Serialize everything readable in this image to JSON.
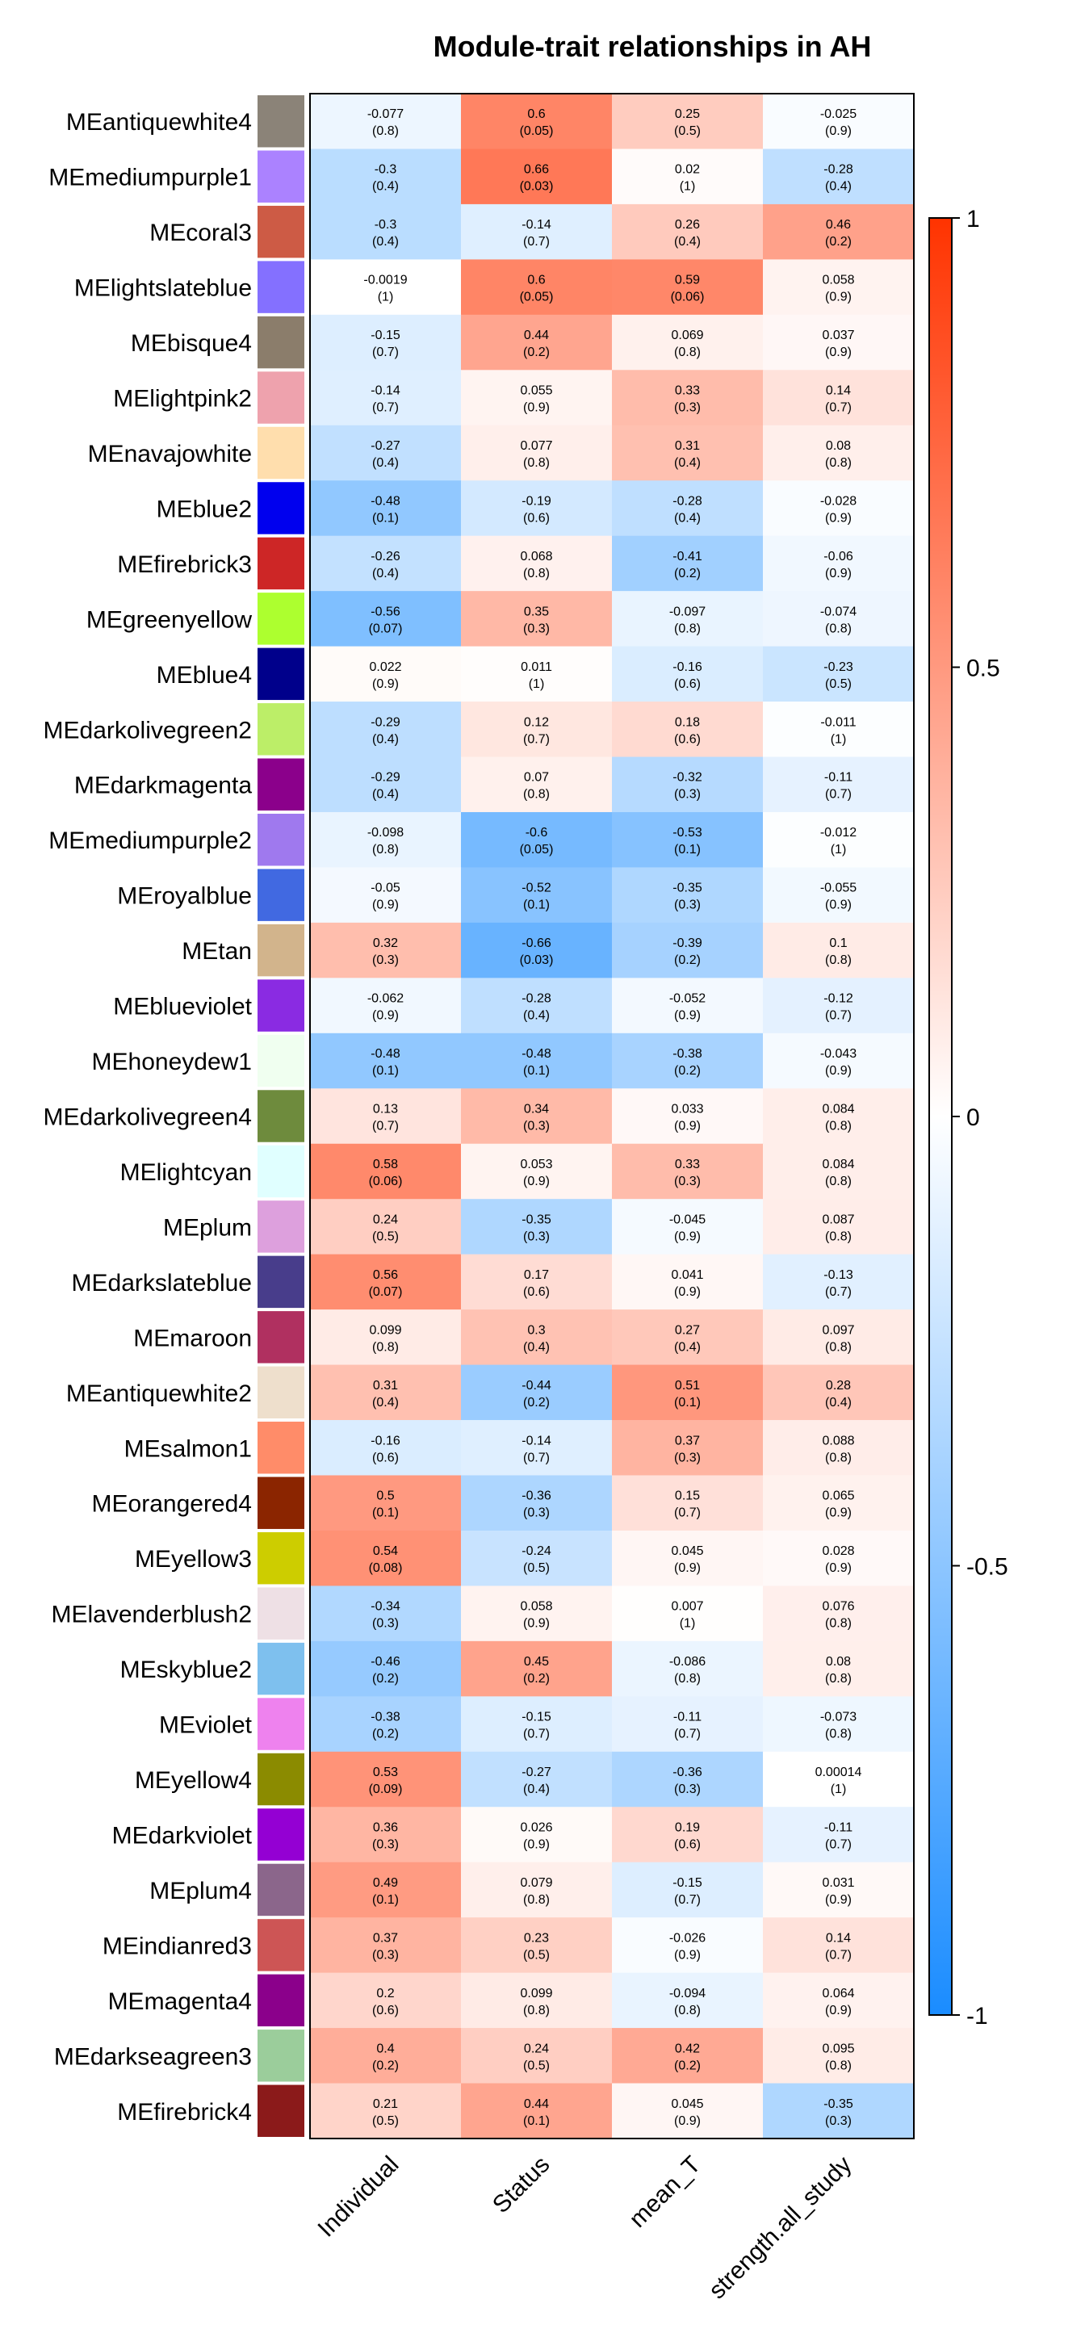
{
  "chart_data": {
    "type": "heatmap",
    "title": "Module-trait relationships in AH",
    "xlabel": "",
    "ylabel": "",
    "columns": [
      "Individual",
      "Status",
      "mean_T",
      "strength.all_study"
    ],
    "colorbar": {
      "range": [
        -1,
        1
      ],
      "ticks": [
        "1",
        "0.5",
        "0",
        "-0.5",
        "-1"
      ],
      "low_color": "#1A8CFF",
      "mid_color": "#FFFFFF",
      "high_color": "#FF3300",
      "placement": "right"
    },
    "rows": [
      {
        "name": "MEantiquewhite4",
        "color": "#8B8378",
        "values": [
          -0.077,
          0.6,
          0.25,
          -0.025
        ],
        "r": [
          "-0.077",
          "0.6",
          "0.25",
          "-0.025"
        ],
        "p": [
          "(0.8)",
          "(0.05)",
          "(0.5)",
          "(0.9)"
        ]
      },
      {
        "name": "MEmediumpurple1",
        "color": "#AB82FF",
        "values": [
          -0.3,
          0.66,
          0.02,
          -0.28
        ],
        "r": [
          "-0.3",
          "0.66",
          "0.02",
          "-0.28"
        ],
        "p": [
          "(0.4)",
          "(0.03)",
          "(1)",
          "(0.4)"
        ]
      },
      {
        "name": "MEcoral3",
        "color": "#CD5B45",
        "values": [
          -0.3,
          -0.14,
          0.26,
          0.46
        ],
        "r": [
          "-0.3",
          "-0.14",
          "0.26",
          "0.46"
        ],
        "p": [
          "(0.4)",
          "(0.7)",
          "(0.4)",
          "(0.2)"
        ]
      },
      {
        "name": "MElightslateblue",
        "color": "#8470FF",
        "values": [
          -0.0019,
          0.6,
          0.59,
          0.058
        ],
        "r": [
          "-0.0019",
          "0.6",
          "0.59",
          "0.058"
        ],
        "p": [
          "(1)",
          "(0.05)",
          "(0.06)",
          "(0.9)"
        ]
      },
      {
        "name": "MEbisque4",
        "color": "#8B7D6B",
        "values": [
          -0.15,
          0.44,
          0.069,
          0.037
        ],
        "r": [
          "-0.15",
          "0.44",
          "0.069",
          "0.037"
        ],
        "p": [
          "(0.7)",
          "(0.2)",
          "(0.8)",
          "(0.9)"
        ]
      },
      {
        "name": "MElightpink2",
        "color": "#EEA2AD",
        "values": [
          -0.14,
          0.055,
          0.33,
          0.14
        ],
        "r": [
          "-0.14",
          "0.055",
          "0.33",
          "0.14"
        ],
        "p": [
          "(0.7)",
          "(0.9)",
          "(0.3)",
          "(0.7)"
        ]
      },
      {
        "name": "MEnavajowhite",
        "color": "#FFDEAD",
        "values": [
          -0.27,
          0.077,
          0.31,
          0.08
        ],
        "r": [
          "-0.27",
          "0.077",
          "0.31",
          "0.08"
        ],
        "p": [
          "(0.4)",
          "(0.8)",
          "(0.4)",
          "(0.8)"
        ]
      },
      {
        "name": "MEblue2",
        "color": "#0000EE",
        "values": [
          -0.48,
          -0.19,
          -0.28,
          -0.028
        ],
        "r": [
          "-0.48",
          "-0.19",
          "-0.28",
          "-0.028"
        ],
        "p": [
          "(0.1)",
          "(0.6)",
          "(0.4)",
          "(0.9)"
        ]
      },
      {
        "name": "MEfirebrick3",
        "color": "#CD2626",
        "values": [
          -0.26,
          0.068,
          -0.41,
          -0.06
        ],
        "r": [
          "-0.26",
          "0.068",
          "-0.41",
          "-0.06"
        ],
        "p": [
          "(0.4)",
          "(0.8)",
          "(0.2)",
          "(0.9)"
        ]
      },
      {
        "name": "MEgreenyellow",
        "color": "#ADFF2F",
        "values": [
          -0.56,
          0.35,
          -0.097,
          -0.074
        ],
        "r": [
          "-0.56",
          "0.35",
          "-0.097",
          "-0.074"
        ],
        "p": [
          "(0.07)",
          "(0.3)",
          "(0.8)",
          "(0.8)"
        ]
      },
      {
        "name": "MEblue4",
        "color": "#00008B",
        "values": [
          0.022,
          0.011,
          -0.16,
          -0.23
        ],
        "r": [
          "0.022",
          "0.011",
          "-0.16",
          "-0.23"
        ],
        "p": [
          "(0.9)",
          "(1)",
          "(0.6)",
          "(0.5)"
        ]
      },
      {
        "name": "MEdarkolivegreen2",
        "color": "#BCEE68",
        "values": [
          -0.29,
          0.12,
          0.18,
          -0.011
        ],
        "r": [
          "-0.29",
          "0.12",
          "0.18",
          "-0.011"
        ],
        "p": [
          "(0.4)",
          "(0.7)",
          "(0.6)",
          "(1)"
        ]
      },
      {
        "name": "MEdarkmagenta",
        "color": "#8B008B",
        "values": [
          -0.29,
          0.07,
          -0.32,
          -0.11
        ],
        "r": [
          "-0.29",
          "0.07",
          "-0.32",
          "-0.11"
        ],
        "p": [
          "(0.4)",
          "(0.8)",
          "(0.3)",
          "(0.7)"
        ]
      },
      {
        "name": "MEmediumpurple2",
        "color": "#9F79EE",
        "values": [
          -0.098,
          -0.6,
          -0.53,
          -0.012
        ],
        "r": [
          "-0.098",
          "-0.6",
          "-0.53",
          "-0.012"
        ],
        "p": [
          "(0.8)",
          "(0.05)",
          "(0.1)",
          "(1)"
        ]
      },
      {
        "name": "MEroyalblue",
        "color": "#4169E1",
        "values": [
          -0.05,
          -0.52,
          -0.35,
          -0.055
        ],
        "r": [
          "-0.05",
          "-0.52",
          "-0.35",
          "-0.055"
        ],
        "p": [
          "(0.9)",
          "(0.1)",
          "(0.3)",
          "(0.9)"
        ]
      },
      {
        "name": "MEtan",
        "color": "#D2B48C",
        "values": [
          0.32,
          -0.66,
          -0.39,
          0.1
        ],
        "r": [
          "0.32",
          "-0.66",
          "-0.39",
          "0.1"
        ],
        "p": [
          "(0.3)",
          "(0.03)",
          "(0.2)",
          "(0.8)"
        ]
      },
      {
        "name": "MEblueviolet",
        "color": "#8A2BE2",
        "values": [
          -0.062,
          -0.28,
          -0.052,
          -0.12
        ],
        "r": [
          "-0.062",
          "-0.28",
          "-0.052",
          "-0.12"
        ],
        "p": [
          "(0.9)",
          "(0.4)",
          "(0.9)",
          "(0.7)"
        ]
      },
      {
        "name": "MEhoneydew1",
        "color": "#F0FFF0",
        "values": [
          -0.48,
          -0.48,
          -0.38,
          -0.043
        ],
        "r": [
          "-0.48",
          "-0.48",
          "-0.38",
          "-0.043"
        ],
        "p": [
          "(0.1)",
          "(0.1)",
          "(0.2)",
          "(0.9)"
        ]
      },
      {
        "name": "MEdarkolivegreen4",
        "color": "#6E8B3D",
        "values": [
          0.13,
          0.34,
          0.033,
          0.084
        ],
        "r": [
          "0.13",
          "0.34",
          "0.033",
          "0.084"
        ],
        "p": [
          "(0.7)",
          "(0.3)",
          "(0.9)",
          "(0.8)"
        ]
      },
      {
        "name": "MElightcyan",
        "color": "#E0FFFF",
        "values": [
          0.58,
          0.053,
          0.33,
          0.084
        ],
        "r": [
          "0.58",
          "0.053",
          "0.33",
          "0.084"
        ],
        "p": [
          "(0.06)",
          "(0.9)",
          "(0.3)",
          "(0.8)"
        ]
      },
      {
        "name": "MEplum",
        "color": "#DDA0DD",
        "values": [
          0.24,
          -0.35,
          -0.045,
          0.087
        ],
        "r": [
          "0.24",
          "-0.35",
          "-0.045",
          "0.087"
        ],
        "p": [
          "(0.5)",
          "(0.3)",
          "(0.9)",
          "(0.8)"
        ]
      },
      {
        "name": "MEdarkslateblue",
        "color": "#483D8B",
        "values": [
          0.56,
          0.17,
          0.041,
          -0.13
        ],
        "r": [
          "0.56",
          "0.17",
          "0.041",
          "-0.13"
        ],
        "p": [
          "(0.07)",
          "(0.6)",
          "(0.9)",
          "(0.7)"
        ]
      },
      {
        "name": "MEmaroon",
        "color": "#B03060",
        "values": [
          0.099,
          0.3,
          0.27,
          0.097
        ],
        "r": [
          "0.099",
          "0.3",
          "0.27",
          "0.097"
        ],
        "p": [
          "(0.8)",
          "(0.4)",
          "(0.4)",
          "(0.8)"
        ]
      },
      {
        "name": "MEantiquewhite2",
        "color": "#EEDFCC",
        "values": [
          0.31,
          -0.44,
          0.51,
          0.28
        ],
        "r": [
          "0.31",
          "-0.44",
          "0.51",
          "0.28"
        ],
        "p": [
          "(0.4)",
          "(0.2)",
          "(0.1)",
          "(0.4)"
        ]
      },
      {
        "name": "MEsalmon1",
        "color": "#FF8C69",
        "values": [
          -0.16,
          -0.14,
          0.37,
          0.088
        ],
        "r": [
          "-0.16",
          "-0.14",
          "0.37",
          "0.088"
        ],
        "p": [
          "(0.6)",
          "(0.7)",
          "(0.3)",
          "(0.8)"
        ]
      },
      {
        "name": "MEorangered4",
        "color": "#8B2500",
        "values": [
          0.5,
          -0.36,
          0.15,
          0.065
        ],
        "r": [
          "0.5",
          "-0.36",
          "0.15",
          "0.065"
        ],
        "p": [
          "(0.1)",
          "(0.3)",
          "(0.7)",
          "(0.9)"
        ]
      },
      {
        "name": "MEyellow3",
        "color": "#CDCD00",
        "values": [
          0.54,
          -0.24,
          0.045,
          0.028
        ],
        "r": [
          "0.54",
          "-0.24",
          "0.045",
          "0.028"
        ],
        "p": [
          "(0.08)",
          "(0.5)",
          "(0.9)",
          "(0.9)"
        ]
      },
      {
        "name": "MElavenderblush2",
        "color": "#EEE0E5",
        "values": [
          -0.34,
          0.058,
          0.007,
          0.076
        ],
        "r": [
          "-0.34",
          "0.058",
          "0.007",
          "0.076"
        ],
        "p": [
          "(0.3)",
          "(0.9)",
          "(1)",
          "(0.8)"
        ]
      },
      {
        "name": "MEskyblue2",
        "color": "#7EC0EE",
        "values": [
          -0.46,
          0.45,
          -0.086,
          0.08
        ],
        "r": [
          "-0.46",
          "0.45",
          "-0.086",
          "0.08"
        ],
        "p": [
          "(0.2)",
          "(0.2)",
          "(0.8)",
          "(0.8)"
        ]
      },
      {
        "name": "MEviolet",
        "color": "#EE82EE",
        "values": [
          -0.38,
          -0.15,
          -0.11,
          -0.073
        ],
        "r": [
          "-0.38",
          "-0.15",
          "-0.11",
          "-0.073"
        ],
        "p": [
          "(0.2)",
          "(0.7)",
          "(0.7)",
          "(0.8)"
        ]
      },
      {
        "name": "MEyellow4",
        "color": "#8B8B00",
        "values": [
          0.53,
          -0.27,
          -0.36,
          0.00014
        ],
        "r": [
          "0.53",
          "-0.27",
          "-0.36",
          "0.00014"
        ],
        "p": [
          "(0.09)",
          "(0.4)",
          "(0.3)",
          "(1)"
        ]
      },
      {
        "name": "MEdarkviolet",
        "color": "#9400D3",
        "values": [
          0.36,
          0.026,
          0.19,
          -0.11
        ],
        "r": [
          "0.36",
          "0.026",
          "0.19",
          "-0.11"
        ],
        "p": [
          "(0.3)",
          "(0.9)",
          "(0.6)",
          "(0.7)"
        ]
      },
      {
        "name": "MEplum4",
        "color": "#8B668B",
        "values": [
          0.49,
          0.079,
          -0.15,
          0.031
        ],
        "r": [
          "0.49",
          "0.079",
          "-0.15",
          "0.031"
        ],
        "p": [
          "(0.1)",
          "(0.8)",
          "(0.7)",
          "(0.9)"
        ]
      },
      {
        "name": "MEindianred3",
        "color": "#CD5555",
        "values": [
          0.37,
          0.23,
          -0.026,
          0.14
        ],
        "r": [
          "0.37",
          "0.23",
          "-0.026",
          "0.14"
        ],
        "p": [
          "(0.3)",
          "(0.5)",
          "(0.9)",
          "(0.7)"
        ]
      },
      {
        "name": "MEmagenta4",
        "color": "#8B008B",
        "values": [
          0.2,
          0.099,
          -0.094,
          0.064
        ],
        "r": [
          "0.2",
          "0.099",
          "-0.094",
          "0.064"
        ],
        "p": [
          "(0.6)",
          "(0.8)",
          "(0.8)",
          "(0.9)"
        ]
      },
      {
        "name": "MEdarkseagreen3",
        "color": "#9BCD9B",
        "values": [
          0.4,
          0.24,
          0.42,
          0.095
        ],
        "r": [
          "0.4",
          "0.24",
          "0.42",
          "0.095"
        ],
        "p": [
          "(0.2)",
          "(0.5)",
          "(0.2)",
          "(0.8)"
        ]
      },
      {
        "name": "MEfirebrick4",
        "color": "#8B1A1A",
        "values": [
          0.21,
          0.44,
          0.045,
          -0.35
        ],
        "r": [
          "0.21",
          "0.44",
          "0.045",
          "-0.35"
        ],
        "p": [
          "(0.5)",
          "(0.1)",
          "(0.9)",
          "(0.3)"
        ]
      }
    ]
  }
}
